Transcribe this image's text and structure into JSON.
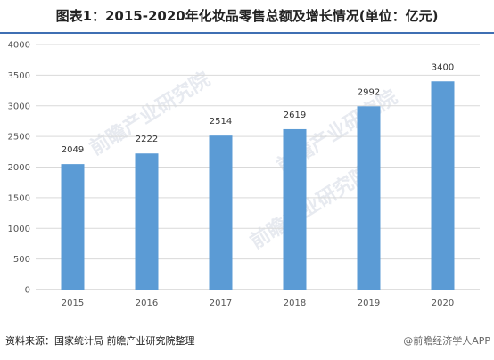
{
  "chart_data": {
    "type": "bar",
    "title": "图表1：2015-2020年化妆品零售总额及增长情况(单位：亿元)",
    "categories": [
      "2015",
      "2016",
      "2017",
      "2018",
      "2019",
      "2020"
    ],
    "values": [
      2049,
      2222,
      2514,
      2619,
      2992,
      3400
    ],
    "yticks": [
      0,
      500,
      1000,
      1500,
      2000,
      2500,
      3000,
      3500,
      4000
    ],
    "ylim": [
      0,
      4000
    ],
    "xlabel": "",
    "ylabel": "",
    "grid": true,
    "bar_color": "#5b9bd5"
  },
  "footer": {
    "source": "资料来源：国家统计局 前瞻产业研究院整理",
    "brand": "@前瞻经济学人APP"
  },
  "watermark": {
    "text": "前瞻产业研究院"
  }
}
